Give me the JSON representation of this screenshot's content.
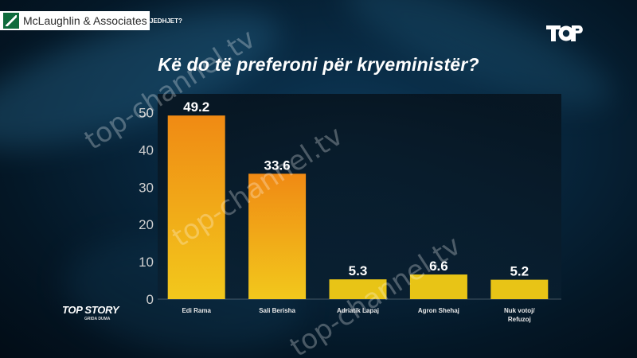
{
  "header": {
    "pollster": "McLaughlin & Associates",
    "strip_text": "JEDHJET?",
    "network_logo_icon": "top-channel-logo-icon"
  },
  "show": {
    "name": "TOP STORY",
    "host": "GRIDA DUMA"
  },
  "watermarks": [
    "top-channel.tv",
    "top-channel.tv",
    "top-channel.tv"
  ],
  "colors": {
    "bar_top": "#f08a14",
    "bar_bottom": "#f2c81c",
    "small_bar": "#e8c416",
    "axis_text": "#d0d0d0"
  },
  "chart_data": {
    "type": "bar",
    "title": "Kë do të preferoni për kryeministër?",
    "categories": [
      "Edi Rama",
      "Sali Berisha",
      "Adriatik Lapaj",
      "Agron Shehaj",
      "Nuk votoj/ Refuzoj"
    ],
    "category_lines": [
      [
        "Edi Rama"
      ],
      [
        "Sali Berisha"
      ],
      [
        "Adriatik Lapaj"
      ],
      [
        "Agron Shehaj"
      ],
      [
        "Nuk votoj/",
        "Refuzoj"
      ]
    ],
    "values": [
      49.2,
      33.6,
      5.3,
      6.6,
      5.2
    ],
    "data_labels": [
      "49.2",
      "33.6",
      "5.3",
      "6.6",
      "5.2"
    ],
    "yticks": [
      0,
      10,
      20,
      30,
      40,
      50
    ],
    "ylim": [
      0,
      55
    ],
    "xlabel": "",
    "ylabel": "",
    "grid": false,
    "legend": "none"
  }
}
